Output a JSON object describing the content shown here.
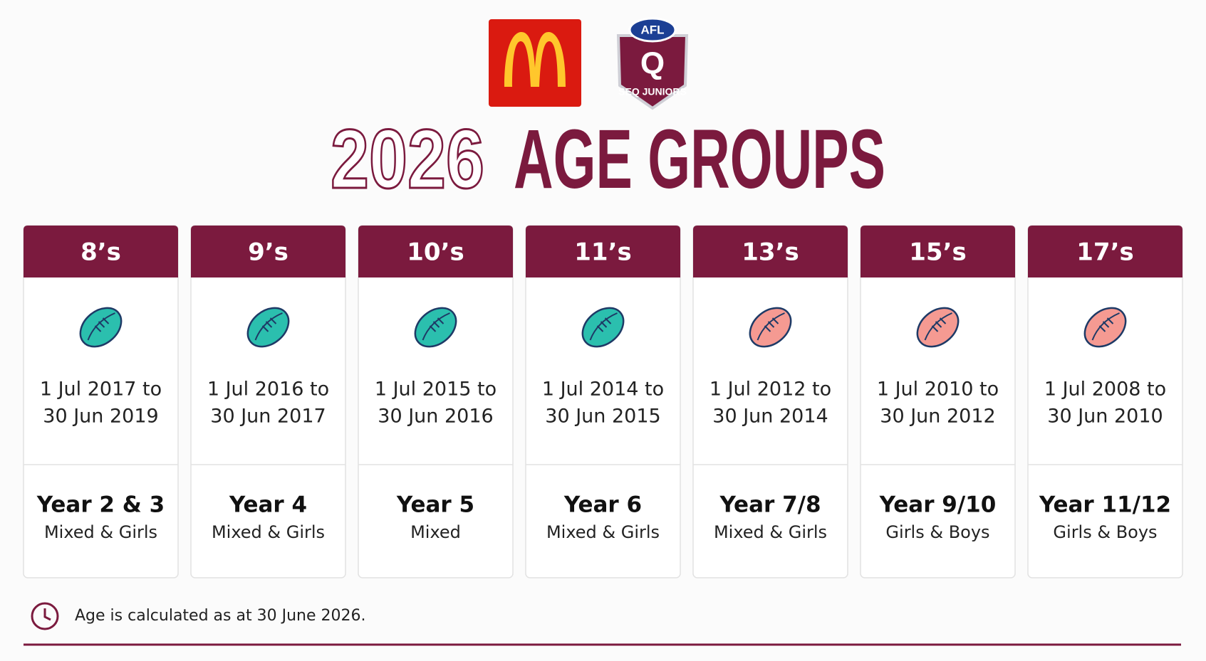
{
  "logos": {
    "afl": "AFL",
    "q": "Q",
    "seq": "SEQ JUNIORS"
  },
  "header": {
    "year": "2026",
    "title": "AGE GROUPS"
  },
  "cards": [
    {
      "label": "8’s",
      "dates": [
        "1 Jul 2017 to",
        "30 Jun 2019"
      ],
      "year": "Year 2 & 3",
      "group": "Mixed & Girls",
      "ball_color": "#2bbfae"
    },
    {
      "label": "9’s",
      "dates": [
        "1 Jul 2016 to",
        "30 Jun 2017"
      ],
      "year": "Year 4",
      "group": "Mixed & Girls",
      "ball_color": "#2bbfae"
    },
    {
      "label": "10’s",
      "dates": [
        "1 Jul 2015 to",
        "30 Jun 2016"
      ],
      "year": "Year 5",
      "group": "Mixed",
      "ball_color": "#2bbfae"
    },
    {
      "label": "11’s",
      "dates": [
        "1 Jul 2014 to",
        "30 Jun 2015"
      ],
      "year": "Year 6",
      "group": "Mixed & Girls",
      "ball_color": "#2bbfae"
    },
    {
      "label": "13’s",
      "dates": [
        "1 Jul 2012 to",
        "30 Jun 2014"
      ],
      "year": "Year 7/8",
      "group": "Mixed & Girls",
      "ball_color": "#f59a92"
    },
    {
      "label": "15’s",
      "dates": [
        "1 Jul 2010 to",
        "30 Jun 2012"
      ],
      "year": "Year 9/10",
      "group": "Girls & Boys",
      "ball_color": "#f59a92"
    },
    {
      "label": "17’s",
      "dates": [
        "1 Jul 2008 to",
        "30 Jun 2010"
      ],
      "year": "Year 11/12",
      "group": "Girls & Boys",
      "ball_color": "#f59a92"
    }
  ],
  "footnote": "Age is calculated as at 30 June 2026."
}
